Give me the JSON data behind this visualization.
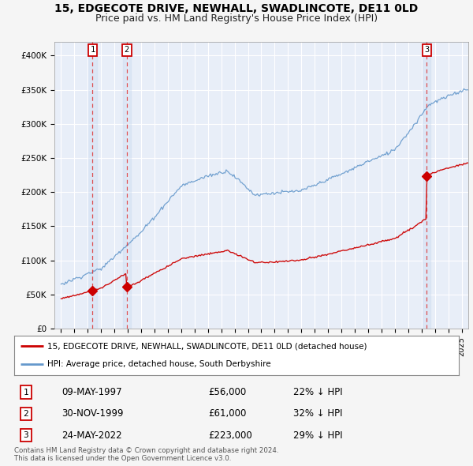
{
  "title": "15, EDGECOTE DRIVE, NEWHALL, SWADLINCOTE, DE11 0LD",
  "subtitle": "Price paid vs. HM Land Registry's House Price Index (HPI)",
  "ylim": [
    0,
    420000
  ],
  "yticks": [
    0,
    50000,
    100000,
    150000,
    200000,
    250000,
    300000,
    350000,
    400000
  ],
  "ytick_labels": [
    "£0",
    "£50K",
    "£100K",
    "£150K",
    "£200K",
    "£250K",
    "£300K",
    "£350K",
    "£400K"
  ],
  "xlim_start": 1994.5,
  "xlim_end": 2025.5,
  "sale_dates": [
    1997.36,
    1999.92,
    2022.39
  ],
  "sale_prices": [
    56000,
    61000,
    223000
  ],
  "sale_labels": [
    "1",
    "2",
    "3"
  ],
  "red_line_color": "#cc0000",
  "blue_line_color": "#6699cc",
  "dashed_line_color": "#dd3333",
  "plot_bg_color": "#e8eef8",
  "legend_red_label": "15, EDGECOTE DRIVE, NEWHALL, SWADLINCOTE, DE11 0LD (detached house)",
  "legend_blue_label": "HPI: Average price, detached house, South Derbyshire",
  "table_data": [
    [
      "1",
      "09-MAY-1997",
      "£56,000",
      "22% ↓ HPI"
    ],
    [
      "2",
      "30-NOV-1999",
      "£61,000",
      "32% ↓ HPI"
    ],
    [
      "3",
      "24-MAY-2022",
      "£223,000",
      "29% ↓ HPI"
    ]
  ],
  "footer_text": "Contains HM Land Registry data © Crown copyright and database right 2024.\nThis data is licensed under the Open Government Licence v3.0.",
  "title_fontsize": 10,
  "subtitle_fontsize": 9,
  "tick_fontsize": 7.5
}
